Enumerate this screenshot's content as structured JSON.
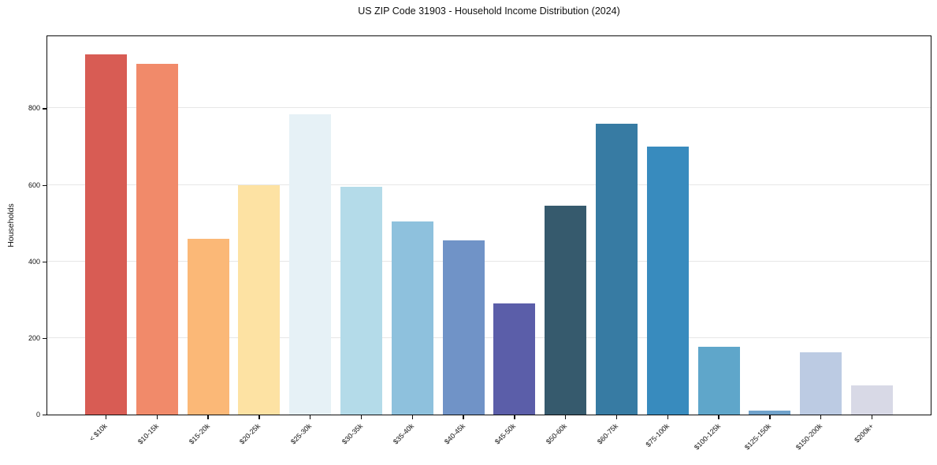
{
  "chart": {
    "title": "US ZIP Code 31903 - Household Income Distribution (2024)",
    "ylabel": "Households"
  },
  "chart_data": {
    "type": "bar",
    "title": "US ZIP Code 31903 - Household Income Distribution (2024)",
    "xlabel": "",
    "ylabel": "Households",
    "categories": [
      "< $10k",
      "$10-15k",
      "$15-20k",
      "$20-25k",
      "$25-30k",
      "$30-35k",
      "$35-40k",
      "$40-45k",
      "$45-50k",
      "$50-60k",
      "$60-75k",
      "$75-100k",
      "$100-125k",
      "$125-150k",
      "$150-200k",
      "$200k+"
    ],
    "values": [
      940,
      915,
      460,
      600,
      785,
      595,
      505,
      455,
      290,
      545,
      760,
      700,
      178,
      10,
      163,
      77
    ],
    "bar_colors": [
      "#d85c54",
      "#f18a6a",
      "#fbb877",
      "#fde2a3",
      "#e6f1f6",
      "#b4dbe9",
      "#8ec1dd",
      "#7093c7",
      "#5b5ea9",
      "#365a6d",
      "#377ba3",
      "#388bbe",
      "#5fa6ca",
      "#70a2cb",
      "#bccbe3",
      "#d8d9e6"
    ],
    "ylim": [
      0,
      988
    ],
    "yticks": [
      0,
      200,
      400,
      600,
      800
    ],
    "grid": "horizontal-light",
    "legend": "none",
    "axis_color": "#0d0d0d",
    "gridline_color": "#e7e7e7"
  }
}
